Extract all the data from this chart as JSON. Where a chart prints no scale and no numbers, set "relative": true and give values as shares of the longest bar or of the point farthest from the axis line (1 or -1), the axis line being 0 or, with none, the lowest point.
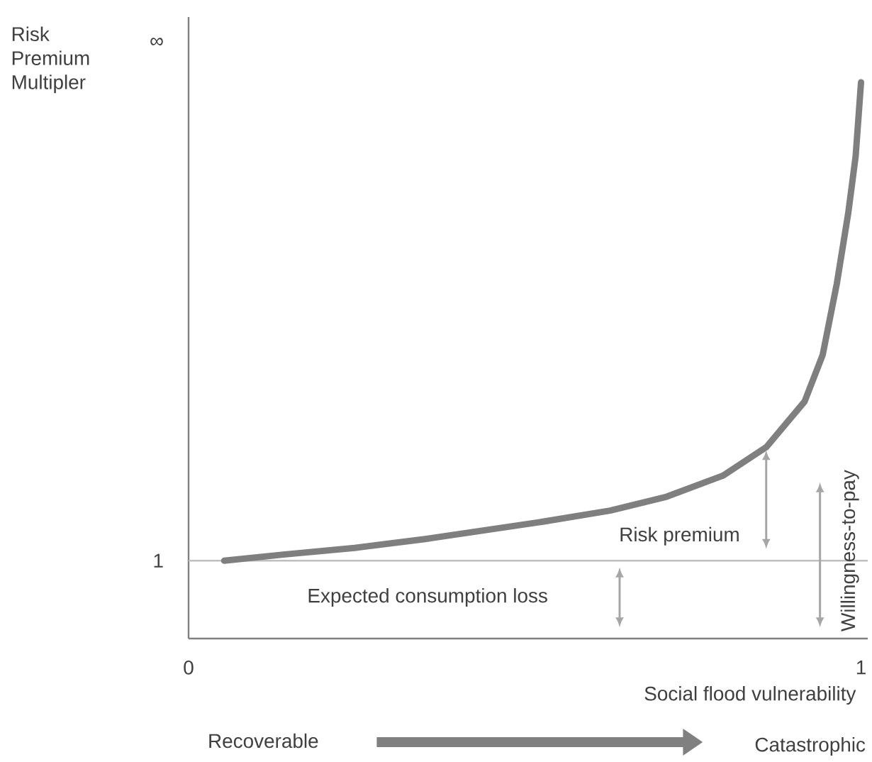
{
  "chart_data": {
    "type": "line",
    "relative": true,
    "xlabel": "Social  flood vulnerability",
    "ylabel": "Risk Premium Multipler",
    "xlim": [
      0,
      1.01
    ],
    "xticks": [
      0,
      1
    ],
    "series": [
      {
        "color": "#7f7f7f",
        "x": [
          0.053,
          0.141,
          0.247,
          0.352,
          0.521,
          0.627,
          0.711,
          0.795,
          0.859,
          0.916,
          0.943,
          0.964,
          0.981,
          0.992,
          1.0
        ],
        "values": [
          0.14,
          0.151,
          0.163,
          0.179,
          0.209,
          0.23,
          0.255,
          0.293,
          0.344,
          0.426,
          0.51,
          0.638,
          0.765,
          0.867,
          1.0
        ]
      }
    ],
    "ref_lines": [
      {
        "axis": "y",
        "value": 0.14,
        "color": "#bfbfbf"
      }
    ],
    "annotations": [
      "∞",
      "1",
      "Recoverable",
      "Catastrophic",
      "Expected consumption loss",
      "Risk premium",
      "Willingness-to-pay"
    ]
  }
}
